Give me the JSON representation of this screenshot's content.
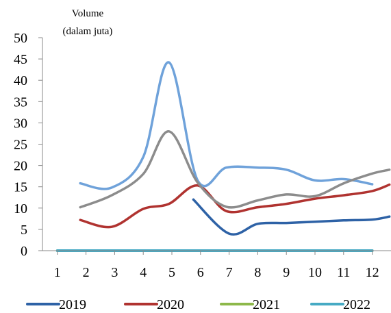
{
  "chart_data": {
    "type": "line",
    "ylabel": [
      "Volume",
      "(dalam juta)"
    ],
    "x": [
      1,
      2,
      3,
      4,
      5,
      6,
      7,
      8,
      9,
      10,
      11,
      12
    ],
    "ylim": [
      0,
      50
    ],
    "yticks": [
      0,
      5,
      10,
      15,
      20,
      25,
      30,
      35,
      40,
      45,
      50
    ],
    "series": [
      {
        "name": "2019",
        "color": "#2E62A6",
        "points": [
          [
            5.75,
            12
          ],
          [
            7,
            4
          ],
          [
            8,
            6.3
          ],
          [
            9,
            6.5
          ],
          [
            10,
            6.8
          ],
          [
            11,
            7.1
          ],
          [
            12,
            7.3
          ],
          [
            12.6,
            8
          ]
        ]
      },
      {
        "name": "2020",
        "color": "#B03330",
        "points": [
          [
            1.8,
            7.2
          ],
          [
            2.9,
            5.6
          ],
          [
            4,
            9.8
          ],
          [
            4.9,
            11
          ],
          [
            5.9,
            15.3
          ],
          [
            6.9,
            9.3
          ],
          [
            8,
            10.2
          ],
          [
            9,
            11
          ],
          [
            10,
            12.2
          ],
          [
            11,
            13
          ],
          [
            12,
            14
          ],
          [
            12.6,
            15.5
          ]
        ]
      },
      {
        "name": "2021",
        "color": "#8DB84A",
        "points": [
          [
            1.0,
            0
          ],
          [
            12.0,
            0
          ]
        ]
      },
      {
        "name": "2022",
        "color": "#46AAC4",
        "points": [
          [
            1.0,
            0
          ],
          [
            12.0,
            0
          ]
        ]
      },
      {
        "name": "",
        "color": "#6FA2DA",
        "points": [
          [
            1.8,
            15.8
          ],
          [
            2.9,
            14.8
          ],
          [
            4,
            22
          ],
          [
            4.9,
            44.2
          ],
          [
            5.9,
            16.5
          ],
          [
            6.9,
            19.5
          ],
          [
            8,
            19.5
          ],
          [
            9,
            19.0
          ],
          [
            10,
            16.5
          ],
          [
            11,
            16.8
          ],
          [
            12,
            15.6
          ]
        ]
      },
      {
        "name": "",
        "color": "#8C8C8C",
        "points": [
          [
            1.8,
            10.2
          ],
          [
            2.9,
            13
          ],
          [
            4,
            18
          ],
          [
            4.9,
            28
          ],
          [
            5.9,
            16
          ],
          [
            6.9,
            10.3
          ],
          [
            8,
            11.8
          ],
          [
            9,
            13.2
          ],
          [
            10,
            12.8
          ],
          [
            11,
            15.8
          ],
          [
            12,
            18.1
          ],
          [
            12.6,
            19
          ]
        ]
      }
    ],
    "legend": [
      "2019",
      "2020",
      "2021",
      "2022"
    ],
    "legend_position": "bottom",
    "grid": false
  }
}
